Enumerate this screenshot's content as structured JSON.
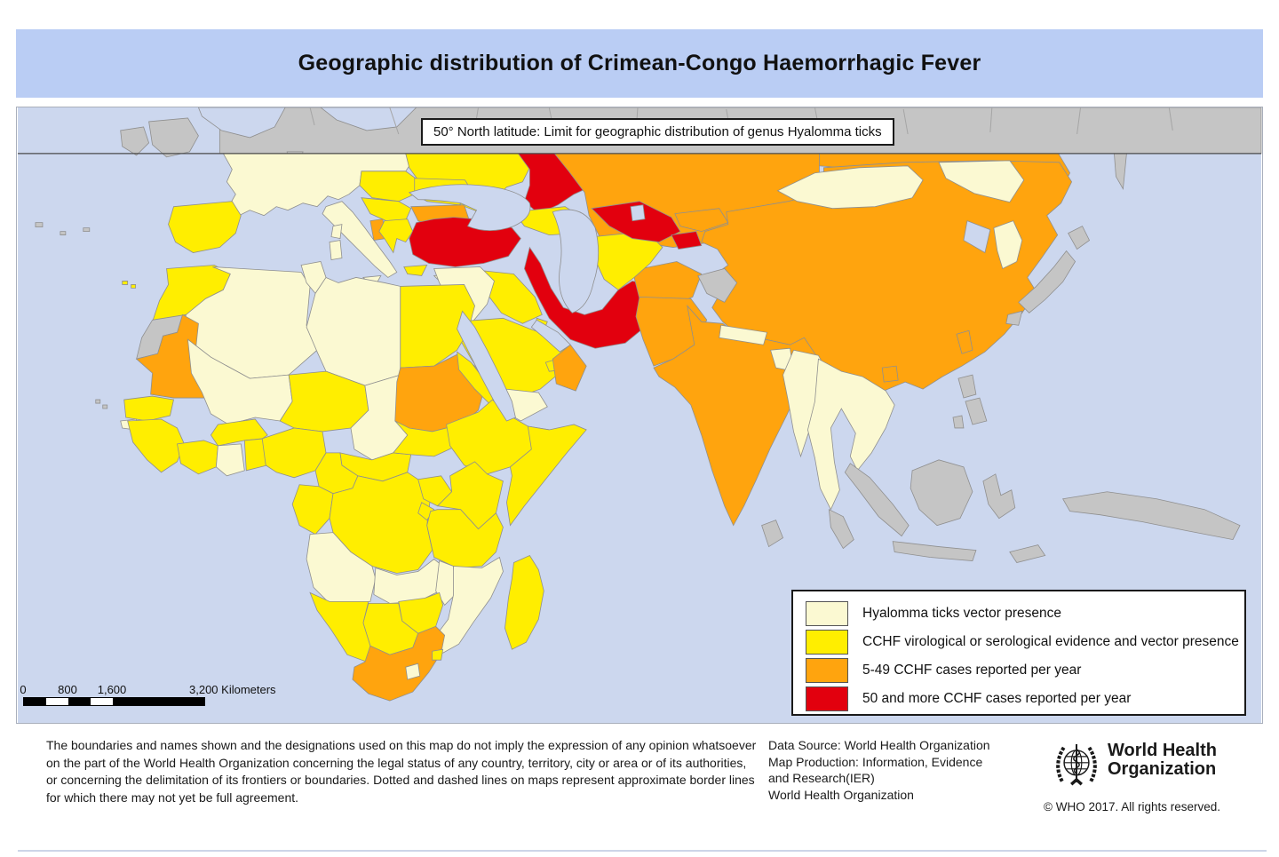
{
  "title": "Geographic distribution of Crimean-Congo Haemorrhagic Fever",
  "map": {
    "annotation": "50° North latitude: Limit for geographic distribution of genus Hyalomma ticks"
  },
  "colors": {
    "title_bar": "#bacdf4",
    "sea": "#ccd7ee",
    "no_data_land": "#c5c5c5",
    "country_border": "#8f8f8f",
    "latitude_line": "#4a4a4a"
  },
  "legend": {
    "items": [
      {
        "key": "pale",
        "color": "#fbf9d2",
        "label": "Hyalomma ticks vector presence"
      },
      {
        "key": "yellow",
        "color": "#ffee00",
        "label": "CCHF virological or serological evidence and vector presence"
      },
      {
        "key": "orange",
        "color": "#ffa40e",
        "label": "5-49 CCHF cases reported per year"
      },
      {
        "key": "red",
        "color": "#e2000e",
        "label": "50 and more CCHF cases reported per year"
      }
    ]
  },
  "scale_bar": {
    "tick_labels": [
      "0",
      "800",
      "1,600"
    ],
    "end_label": "3,200 Kilometers"
  },
  "footer": {
    "disclaimer_lines": [
      "The boundaries and names shown and the designations used on this map do not imply the expression of any opinion whatsoever",
      "on the part of the World Health Organization concerning the legal status of any country, territory, city or area or of its authorities,",
      "or concerning the delimitation of its frontiers or boundaries. Dotted and dashed lines on maps represent approximate border lines",
      "for which there may not yet be full agreement."
    ],
    "data_source_lines": [
      "Data Source: World Health Organization",
      "Map Production: Information, Evidence",
      "and Research(IER)",
      "World Health Organization"
    ],
    "logo_lines": [
      "World Health",
      "Organization"
    ],
    "copyright": "© WHO 2017. All rights reserved."
  }
}
